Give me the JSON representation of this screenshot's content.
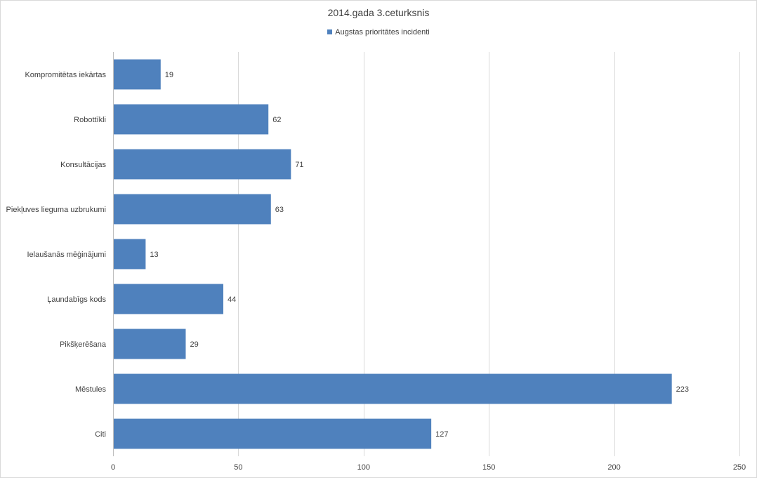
{
  "chart_data": {
    "type": "bar",
    "orientation": "horizontal",
    "title": "2014.gada 3.ceturksnis",
    "categories": [
      "Kompromitētas iekārtas",
      "Robottīkli",
      "Konsultācijas",
      "Piekļuves lieguma uzbrukumi",
      "Ielaušanās mēģinājumi",
      "Ļaundabīgs kods",
      "Pikšķerēšana",
      "Mēstules",
      "Citi"
    ],
    "series": [
      {
        "name": "Augstas prioritātes incidenti",
        "values": [
          19,
          62,
          71,
          63,
          13,
          44,
          29,
          223,
          127
        ],
        "color": "#4f81bd"
      }
    ],
    "xlim": [
      0,
      250
    ],
    "xticks": [
      0,
      50,
      100,
      150,
      200,
      250
    ],
    "xlabel": "",
    "ylabel": "",
    "grid": "vertical",
    "legend_position": "top",
    "data_labels": true
  }
}
